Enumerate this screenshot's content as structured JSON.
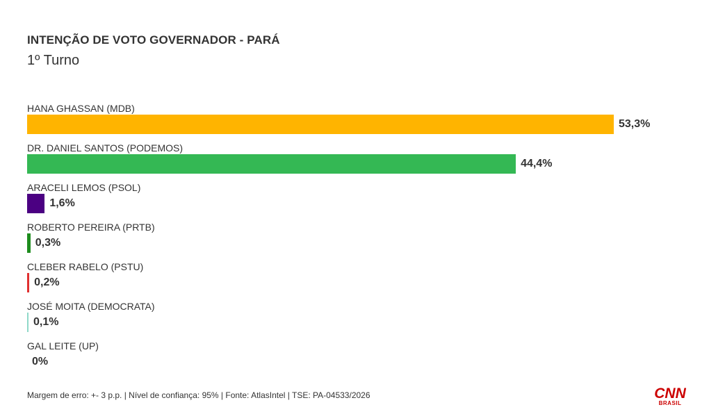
{
  "header": {
    "title": "INTENÇÃO DE VOTO GOVERNADOR - PARÁ",
    "subtitle": "1º Turno"
  },
  "chart_data": {
    "type": "bar",
    "orientation": "horizontal",
    "title": "INTENÇÃO DE VOTO GOVERNADOR - PARÁ",
    "subtitle": "1º Turno",
    "xlim": [
      0,
      60
    ],
    "grid": false,
    "categories": [
      "HANA GHASSAN (MDB)",
      "DR. DANIEL SANTOS (PODEMOS)",
      "ARACELI LEMOS (PSOL)",
      "ROBERTO PEREIRA (PRTB)",
      "CLEBER RABELO (PSTU)",
      "JOSÉ MOITA (DEMOCRATA)",
      "GAL LEITE (UP)"
    ],
    "values": [
      53.3,
      44.4,
      1.6,
      0.3,
      0.2,
      0.1,
      0
    ],
    "value_labels": [
      "53,3%",
      "44,4%",
      "1,6%",
      "0,3%",
      "0,2%",
      "0,1%",
      "0%"
    ],
    "colors": [
      "#FFB400",
      "#34B854",
      "#4B0082",
      "#1E8C1E",
      "#E03030",
      "#8ED8C8",
      "#BBBBBB"
    ]
  },
  "footer": {
    "note": "Margem de erro: +- 3 p.p. | Nível de confiança: 95% | Fonte: AtlasIntel | TSE: PA-04533/2026"
  },
  "logo": {
    "brand": "CNN",
    "sub": "BRASIL",
    "color": "#CC0000"
  }
}
